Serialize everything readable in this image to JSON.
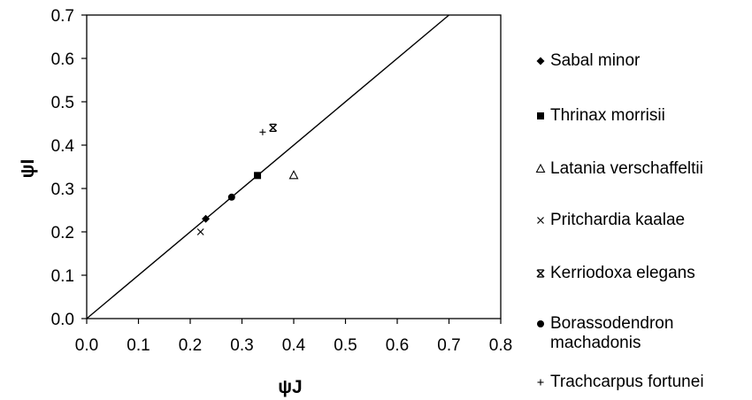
{
  "chart_data": {
    "type": "scatter",
    "title": "",
    "xlabel": "ψJ",
    "ylabel": "ψI",
    "xlim": [
      0.0,
      0.8
    ],
    "ylim": [
      0.0,
      0.7
    ],
    "xticks": [
      "0.0",
      "0.1",
      "0.2",
      "0.3",
      "0.4",
      "0.5",
      "0.6",
      "0.7",
      "0.8"
    ],
    "yticks": [
      "0.0",
      "0.1",
      "0.2",
      "0.3",
      "0.4",
      "0.5",
      "0.6",
      "0.7"
    ],
    "grid": false,
    "legend_position": "right",
    "reference_line": {
      "type": "y=x"
    },
    "series": [
      {
        "name": "Sabal minor",
        "marker": "diamond",
        "points": [
          [
            0.23,
            0.23
          ]
        ]
      },
      {
        "name": "Thrinax morrisii",
        "marker": "square",
        "points": [
          [
            0.33,
            0.33
          ]
        ]
      },
      {
        "name": "Latania verschaffeltii",
        "marker": "open-triangle",
        "points": [
          [
            0.4,
            0.33
          ]
        ]
      },
      {
        "name": "Pritchardia kaalae",
        "marker": "x",
        "points": [
          [
            0.22,
            0.2
          ]
        ]
      },
      {
        "name": "Kerriodoxa elegans",
        "marker": "asterisk-x",
        "points": [
          [
            0.36,
            0.44
          ]
        ]
      },
      {
        "name": "Borassodendron machadonis",
        "marker": "circle",
        "points": [
          [
            0.28,
            0.28
          ]
        ]
      },
      {
        "name": "Trachcarpus fortunei",
        "marker": "plus",
        "points": [
          [
            0.34,
            0.43
          ]
        ]
      }
    ]
  },
  "legend": {
    "items": [
      {
        "marker": "diamond",
        "lines": [
          "Sabal minor"
        ]
      },
      {
        "marker": "square",
        "lines": [
          "Thrinax morrisii"
        ]
      },
      {
        "marker": "open-triangle",
        "lines": [
          "Latania verschaffeltii"
        ]
      },
      {
        "marker": "x",
        "lines": [
          "Pritchardia kaalae"
        ]
      },
      {
        "marker": "asterisk-x",
        "lines": [
          "Kerriodoxa elegans"
        ]
      },
      {
        "marker": "circle",
        "lines": [
          "Borassodendron",
          "machadonis"
        ]
      },
      {
        "marker": "plus",
        "lines": [
          "Trachcarpus fortunei"
        ]
      }
    ]
  }
}
